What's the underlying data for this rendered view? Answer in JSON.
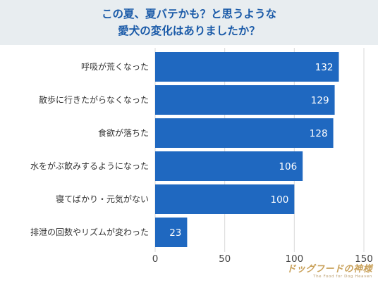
{
  "header": {
    "line1": "この夏、夏バテかも？と思うような",
    "line2": "愛犬の変化はありましたか？"
  },
  "chart_data": {
    "type": "bar",
    "orientation": "horizontal",
    "categories": [
      "呼吸が荒くなった",
      "散歩に行きたがらなくなった",
      "食欲が落ちた",
      "水をがぶ飲みするようになった",
      "寝てばかり・元気がない",
      "排泄の回数やリズムが変わった"
    ],
    "values": [
      132,
      129,
      128,
      106,
      100,
      23
    ],
    "xlim": [
      0,
      150
    ],
    "xticks": [
      0,
      50,
      100,
      150
    ],
    "grid": true,
    "bar_color": "#1f68c0"
  },
  "logo": {
    "main": "ドッグフードの神様",
    "sub": "The Food for Dog Heaven"
  }
}
